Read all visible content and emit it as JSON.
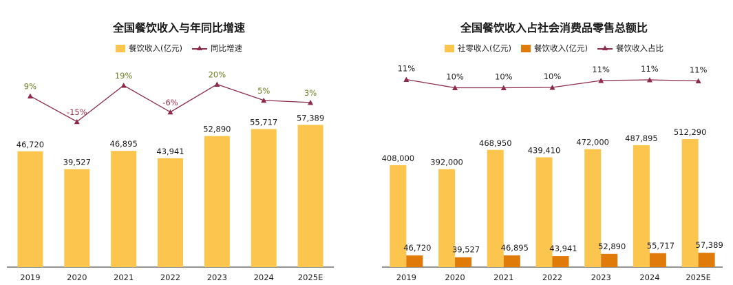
{
  "chart_data": [
    {
      "type": "bar",
      "title": "全国餐饮收入与年同比增速",
      "categories": [
        "2019",
        "2020",
        "2021",
        "2022",
        "2023",
        "2024",
        "2025E"
      ],
      "series": [
        {
          "name": "餐饮收入(亿元)",
          "type": "bar",
          "values": [
            46720,
            39527,
            46895,
            43941,
            52890,
            55717,
            57389
          ],
          "labels": [
            "46,720",
            "39,527",
            "46,895",
            "43,941",
            "52,890",
            "55,717",
            "57,389"
          ],
          "color": "#fcc54d"
        },
        {
          "name": "同比增速",
          "type": "line",
          "values": [
            9,
            -15,
            19,
            -6,
            20,
            5,
            3
          ],
          "labels": [
            "9%",
            "-15%",
            "19%",
            "-6%",
            "20%",
            "5%",
            "3%"
          ],
          "color": "#8b2a4b",
          "label_colors": [
            "#6f7c1f",
            "#9b2c44",
            "#6f7c1f",
            "#9b2c44",
            "#6f7c1f",
            "#6f7c1f",
            "#6f7c1f"
          ]
        }
      ],
      "grid": false,
      "legend": "top-center"
    },
    {
      "type": "bar",
      "title": "全国餐饮收入占社会消费品零售总额比",
      "categories": [
        "2019",
        "2020",
        "2021",
        "2022",
        "2023",
        "2024",
        "2025E"
      ],
      "series": [
        {
          "name": "社零收入(亿元)",
          "type": "bar",
          "values": [
            408000,
            392000,
            468950,
            439410,
            472000,
            487895,
            512290
          ],
          "labels": [
            "408,000",
            "392,000",
            "468,950",
            "439,410",
            "472,000",
            "487,895",
            "512,290"
          ],
          "color": "#fcc54d"
        },
        {
          "name": "餐饮收入(亿元)",
          "type": "bar",
          "values": [
            46720,
            39527,
            46895,
            43941,
            52890,
            55717,
            57389
          ],
          "labels": [
            "46,720",
            "39,527",
            "46,895",
            "43,941",
            "52,890",
            "55,717",
            "57,389"
          ],
          "color": "#e07b0a"
        },
        {
          "name": "餐饮收入占比",
          "type": "line",
          "values": [
            11,
            10,
            10,
            10,
            11,
            11,
            11
          ],
          "labels": [
            "11%",
            "10%",
            "10%",
            "10%",
            "11%",
            "11%",
            "11%"
          ],
          "color": "#8b2a4b"
        }
      ],
      "grid": false,
      "legend": "top-center"
    }
  ]
}
